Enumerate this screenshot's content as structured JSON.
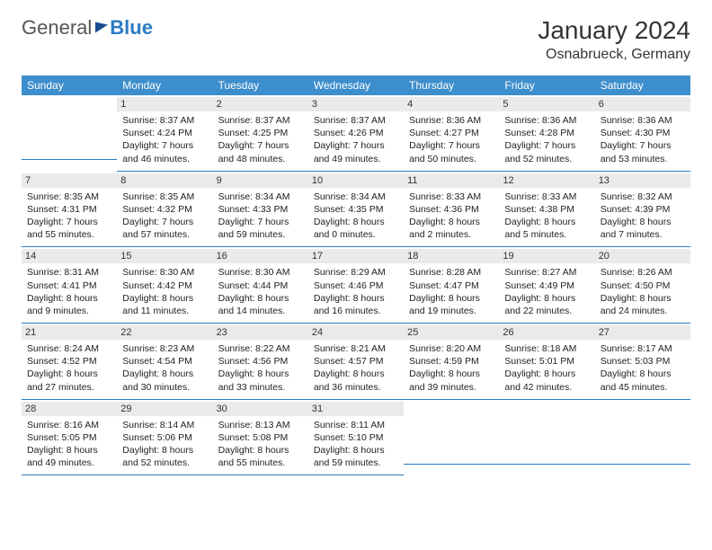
{
  "logo": {
    "part1": "General",
    "part2": "Blue"
  },
  "title": "January 2024",
  "location": "Osnabrueck, Germany",
  "colors": {
    "header_bg": "#3d8ecc",
    "border": "#2b7cc2",
    "daynum_bg": "#eaeaea"
  },
  "weekdays": [
    "Sunday",
    "Monday",
    "Tuesday",
    "Wednesday",
    "Thursday",
    "Friday",
    "Saturday"
  ],
  "weeks": [
    [
      {
        "n": "",
        "sr": "",
        "ss": "",
        "dl1": "",
        "dl2": ""
      },
      {
        "n": "1",
        "sr": "Sunrise: 8:37 AM",
        "ss": "Sunset: 4:24 PM",
        "dl1": "Daylight: 7 hours",
        "dl2": "and 46 minutes."
      },
      {
        "n": "2",
        "sr": "Sunrise: 8:37 AM",
        "ss": "Sunset: 4:25 PM",
        "dl1": "Daylight: 7 hours",
        "dl2": "and 48 minutes."
      },
      {
        "n": "3",
        "sr": "Sunrise: 8:37 AM",
        "ss": "Sunset: 4:26 PM",
        "dl1": "Daylight: 7 hours",
        "dl2": "and 49 minutes."
      },
      {
        "n": "4",
        "sr": "Sunrise: 8:36 AM",
        "ss": "Sunset: 4:27 PM",
        "dl1": "Daylight: 7 hours",
        "dl2": "and 50 minutes."
      },
      {
        "n": "5",
        "sr": "Sunrise: 8:36 AM",
        "ss": "Sunset: 4:28 PM",
        "dl1": "Daylight: 7 hours",
        "dl2": "and 52 minutes."
      },
      {
        "n": "6",
        "sr": "Sunrise: 8:36 AM",
        "ss": "Sunset: 4:30 PM",
        "dl1": "Daylight: 7 hours",
        "dl2": "and 53 minutes."
      }
    ],
    [
      {
        "n": "7",
        "sr": "Sunrise: 8:35 AM",
        "ss": "Sunset: 4:31 PM",
        "dl1": "Daylight: 7 hours",
        "dl2": "and 55 minutes."
      },
      {
        "n": "8",
        "sr": "Sunrise: 8:35 AM",
        "ss": "Sunset: 4:32 PM",
        "dl1": "Daylight: 7 hours",
        "dl2": "and 57 minutes."
      },
      {
        "n": "9",
        "sr": "Sunrise: 8:34 AM",
        "ss": "Sunset: 4:33 PM",
        "dl1": "Daylight: 7 hours",
        "dl2": "and 59 minutes."
      },
      {
        "n": "10",
        "sr": "Sunrise: 8:34 AM",
        "ss": "Sunset: 4:35 PM",
        "dl1": "Daylight: 8 hours",
        "dl2": "and 0 minutes."
      },
      {
        "n": "11",
        "sr": "Sunrise: 8:33 AM",
        "ss": "Sunset: 4:36 PM",
        "dl1": "Daylight: 8 hours",
        "dl2": "and 2 minutes."
      },
      {
        "n": "12",
        "sr": "Sunrise: 8:33 AM",
        "ss": "Sunset: 4:38 PM",
        "dl1": "Daylight: 8 hours",
        "dl2": "and 5 minutes."
      },
      {
        "n": "13",
        "sr": "Sunrise: 8:32 AM",
        "ss": "Sunset: 4:39 PM",
        "dl1": "Daylight: 8 hours",
        "dl2": "and 7 minutes."
      }
    ],
    [
      {
        "n": "14",
        "sr": "Sunrise: 8:31 AM",
        "ss": "Sunset: 4:41 PM",
        "dl1": "Daylight: 8 hours",
        "dl2": "and 9 minutes."
      },
      {
        "n": "15",
        "sr": "Sunrise: 8:30 AM",
        "ss": "Sunset: 4:42 PM",
        "dl1": "Daylight: 8 hours",
        "dl2": "and 11 minutes."
      },
      {
        "n": "16",
        "sr": "Sunrise: 8:30 AM",
        "ss": "Sunset: 4:44 PM",
        "dl1": "Daylight: 8 hours",
        "dl2": "and 14 minutes."
      },
      {
        "n": "17",
        "sr": "Sunrise: 8:29 AM",
        "ss": "Sunset: 4:46 PM",
        "dl1": "Daylight: 8 hours",
        "dl2": "and 16 minutes."
      },
      {
        "n": "18",
        "sr": "Sunrise: 8:28 AM",
        "ss": "Sunset: 4:47 PM",
        "dl1": "Daylight: 8 hours",
        "dl2": "and 19 minutes."
      },
      {
        "n": "19",
        "sr": "Sunrise: 8:27 AM",
        "ss": "Sunset: 4:49 PM",
        "dl1": "Daylight: 8 hours",
        "dl2": "and 22 minutes."
      },
      {
        "n": "20",
        "sr": "Sunrise: 8:26 AM",
        "ss": "Sunset: 4:50 PM",
        "dl1": "Daylight: 8 hours",
        "dl2": "and 24 minutes."
      }
    ],
    [
      {
        "n": "21",
        "sr": "Sunrise: 8:24 AM",
        "ss": "Sunset: 4:52 PM",
        "dl1": "Daylight: 8 hours",
        "dl2": "and 27 minutes."
      },
      {
        "n": "22",
        "sr": "Sunrise: 8:23 AM",
        "ss": "Sunset: 4:54 PM",
        "dl1": "Daylight: 8 hours",
        "dl2": "and 30 minutes."
      },
      {
        "n": "23",
        "sr": "Sunrise: 8:22 AM",
        "ss": "Sunset: 4:56 PM",
        "dl1": "Daylight: 8 hours",
        "dl2": "and 33 minutes."
      },
      {
        "n": "24",
        "sr": "Sunrise: 8:21 AM",
        "ss": "Sunset: 4:57 PM",
        "dl1": "Daylight: 8 hours",
        "dl2": "and 36 minutes."
      },
      {
        "n": "25",
        "sr": "Sunrise: 8:20 AM",
        "ss": "Sunset: 4:59 PM",
        "dl1": "Daylight: 8 hours",
        "dl2": "and 39 minutes."
      },
      {
        "n": "26",
        "sr": "Sunrise: 8:18 AM",
        "ss": "Sunset: 5:01 PM",
        "dl1": "Daylight: 8 hours",
        "dl2": "and 42 minutes."
      },
      {
        "n": "27",
        "sr": "Sunrise: 8:17 AM",
        "ss": "Sunset: 5:03 PM",
        "dl1": "Daylight: 8 hours",
        "dl2": "and 45 minutes."
      }
    ],
    [
      {
        "n": "28",
        "sr": "Sunrise: 8:16 AM",
        "ss": "Sunset: 5:05 PM",
        "dl1": "Daylight: 8 hours",
        "dl2": "and 49 minutes."
      },
      {
        "n": "29",
        "sr": "Sunrise: 8:14 AM",
        "ss": "Sunset: 5:06 PM",
        "dl1": "Daylight: 8 hours",
        "dl2": "and 52 minutes."
      },
      {
        "n": "30",
        "sr": "Sunrise: 8:13 AM",
        "ss": "Sunset: 5:08 PM",
        "dl1": "Daylight: 8 hours",
        "dl2": "and 55 minutes."
      },
      {
        "n": "31",
        "sr": "Sunrise: 8:11 AM",
        "ss": "Sunset: 5:10 PM",
        "dl1": "Daylight: 8 hours",
        "dl2": "and 59 minutes."
      },
      {
        "n": "",
        "sr": "",
        "ss": "",
        "dl1": "",
        "dl2": ""
      },
      {
        "n": "",
        "sr": "",
        "ss": "",
        "dl1": "",
        "dl2": ""
      },
      {
        "n": "",
        "sr": "",
        "ss": "",
        "dl1": "",
        "dl2": ""
      }
    ]
  ]
}
